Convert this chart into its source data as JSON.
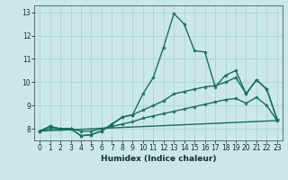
{
  "title": "",
  "xlabel": "Humidex (Indice chaleur)",
  "xlim": [
    -0.5,
    23.5
  ],
  "ylim": [
    7.5,
    13.3
  ],
  "xticks": [
    0,
    1,
    2,
    3,
    4,
    5,
    6,
    7,
    8,
    9,
    10,
    11,
    12,
    13,
    14,
    15,
    16,
    17,
    18,
    19,
    20,
    21,
    22,
    23
  ],
  "yticks": [
    8,
    9,
    10,
    11,
    12,
    13
  ],
  "background_color": "#cbe8e8",
  "grid_color": "#b0d5d5",
  "line_color": "#1a6b60",
  "lines": [
    {
      "x": [
        0,
        1,
        2,
        3,
        4,
        5,
        6,
        7,
        8,
        9,
        10,
        11,
        12,
        13,
        14,
        15,
        16,
        17,
        18,
        19,
        20,
        21,
        22,
        23
      ],
      "y": [
        7.9,
        8.1,
        8.0,
        8.0,
        7.7,
        7.75,
        7.9,
        8.2,
        8.5,
        8.6,
        9.5,
        10.2,
        11.5,
        12.95,
        12.5,
        11.35,
        11.3,
        9.8,
        10.3,
        10.5,
        9.5,
        10.1,
        9.7,
        8.4
      ],
      "has_markers": true
    },
    {
      "x": [
        0,
        1,
        2,
        3,
        4,
        5,
        6,
        7,
        8,
        9,
        10,
        11,
        12,
        13,
        14,
        15,
        16,
        17,
        18,
        19,
        20,
        21,
        22,
        23
      ],
      "y": [
        7.9,
        8.1,
        8.0,
        8.0,
        7.7,
        7.75,
        7.9,
        8.2,
        8.5,
        8.6,
        8.8,
        9.0,
        9.2,
        9.5,
        9.6,
        9.7,
        9.8,
        9.85,
        10.0,
        10.2,
        9.5,
        10.1,
        9.7,
        8.4
      ],
      "has_markers": true
    },
    {
      "x": [
        0,
        1,
        2,
        3,
        4,
        5,
        6,
        7,
        8,
        9,
        10,
        11,
        12,
        13,
        14,
        15,
        16,
        17,
        18,
        19,
        20,
        21,
        22,
        23
      ],
      "y": [
        7.9,
        8.0,
        8.0,
        8.0,
        7.9,
        7.9,
        8.0,
        8.1,
        8.2,
        8.3,
        8.45,
        8.55,
        8.65,
        8.75,
        8.85,
        8.95,
        9.05,
        9.15,
        9.25,
        9.3,
        9.1,
        9.35,
        9.0,
        8.35
      ],
      "has_markers": true
    },
    {
      "x": [
        0,
        23
      ],
      "y": [
        7.9,
        8.35
      ],
      "has_markers": false
    }
  ],
  "marker": "*",
  "markersize": 3.0,
  "linewidth": 1.0,
  "xlabel_fontsize": 6.5,
  "tick_fontsize": 5.5
}
